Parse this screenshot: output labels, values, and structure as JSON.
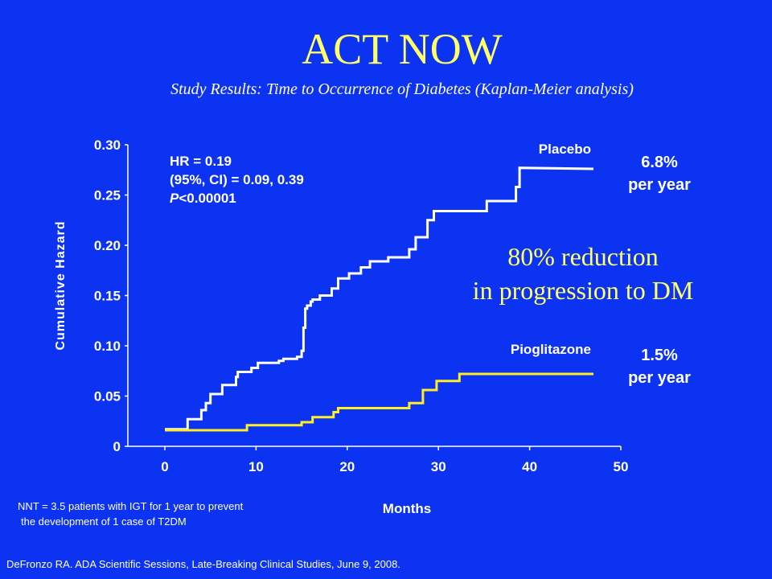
{
  "title": "ACT NOW",
  "subtitle": "Study Results: Time to Occurrence of Diabetes (Kaplan-Meier analysis)",
  "stats": {
    "hr": "HR = 0.19",
    "ci": "(95%, CI) = 0.09, 0.39",
    "p_italic": "P",
    "p_rest": "<0.00001"
  },
  "rates": {
    "placebo_pct": "6.8%",
    "placebo_unit": "per year",
    "pio_pct": "1.5%",
    "pio_unit": "per year"
  },
  "reduction_line1": "80% reduction",
  "reduction_line2": "in progression to DM",
  "nnt_line1": "NNT = 3.5 patients with IGT for 1 year to prevent",
  "nnt_line2": "the development of 1 case of T2DM",
  "source": "DeFronzo RA. ADA Scientific Sessions, Late-Breaking Clinical Studies, June 9, 2008.",
  "colors": {
    "background": "#0d33f2",
    "title": "#ffff66",
    "placebo": "#ffffff",
    "pioglitazone": "#ffee22"
  },
  "chart_data": {
    "type": "line",
    "xlabel": "Months",
    "ylabel": "Cumulative Hazard",
    "xlim": [
      0,
      50
    ],
    "ylim": [
      0,
      0.3
    ],
    "xticks": [
      "0",
      "10",
      "20",
      "30",
      "40",
      "50"
    ],
    "yticks": [
      "0",
      "0.05",
      "0.10",
      "0.15",
      "0.20",
      "0.25",
      "0.30"
    ],
    "series": [
      {
        "name": "Placebo",
        "color": "#ffffff",
        "points": [
          [
            0,
            0.017
          ],
          [
            2.5,
            0.017
          ],
          [
            2.5,
            0.027
          ],
          [
            4,
            0.027
          ],
          [
            4,
            0.036
          ],
          [
            4.5,
            0.036
          ],
          [
            4.5,
            0.043
          ],
          [
            5,
            0.043
          ],
          [
            5,
            0.052
          ],
          [
            6.3,
            0.052
          ],
          [
            6.3,
            0.061
          ],
          [
            7.8,
            0.061
          ],
          [
            7.8,
            0.069
          ],
          [
            8,
            0.069
          ],
          [
            8,
            0.074
          ],
          [
            9.5,
            0.074
          ],
          [
            9.5,
            0.078
          ],
          [
            10.2,
            0.078
          ],
          [
            10.2,
            0.083
          ],
          [
            12.5,
            0.083
          ],
          [
            12.5,
            0.085
          ],
          [
            13,
            0.085
          ],
          [
            13,
            0.087
          ],
          [
            14.5,
            0.087
          ],
          [
            14.5,
            0.089
          ],
          [
            15,
            0.089
          ],
          [
            15,
            0.095
          ],
          [
            15.2,
            0.095
          ],
          [
            15.2,
            0.118
          ],
          [
            15.4,
            0.118
          ],
          [
            15.4,
            0.137
          ],
          [
            15.6,
            0.137
          ],
          [
            15.6,
            0.14
          ],
          [
            16,
            0.14
          ],
          [
            16,
            0.144
          ],
          [
            16.2,
            0.144
          ],
          [
            16.2,
            0.146
          ],
          [
            17,
            0.146
          ],
          [
            17,
            0.15
          ],
          [
            18.3,
            0.15
          ],
          [
            18.3,
            0.157
          ],
          [
            19,
            0.157
          ],
          [
            19,
            0.167
          ],
          [
            20.2,
            0.167
          ],
          [
            20.2,
            0.172
          ],
          [
            21.5,
            0.172
          ],
          [
            21.5,
            0.178
          ],
          [
            22.5,
            0.178
          ],
          [
            22.5,
            0.184
          ],
          [
            24.5,
            0.184
          ],
          [
            24.5,
            0.188
          ],
          [
            26.8,
            0.188
          ],
          [
            26.8,
            0.196
          ],
          [
            27.5,
            0.196
          ],
          [
            27.5,
            0.208
          ],
          [
            28.8,
            0.208
          ],
          [
            28.8,
            0.225
          ],
          [
            29.5,
            0.225
          ],
          [
            29.5,
            0.234
          ],
          [
            35.3,
            0.234
          ],
          [
            35.3,
            0.244
          ],
          [
            38.5,
            0.244
          ],
          [
            38.5,
            0.258
          ],
          [
            38.9,
            0.258
          ],
          [
            38.9,
            0.277
          ],
          [
            47,
            0.276
          ]
        ]
      },
      {
        "name": "Pioglitazone",
        "color": "#ffee22",
        "points": [
          [
            0,
            0.016
          ],
          [
            9,
            0.016
          ],
          [
            9,
            0.021
          ],
          [
            15,
            0.021
          ],
          [
            15,
            0.024
          ],
          [
            16.2,
            0.024
          ],
          [
            16.2,
            0.029
          ],
          [
            18.5,
            0.029
          ],
          [
            18.5,
            0.034
          ],
          [
            19,
            0.034
          ],
          [
            19,
            0.038
          ],
          [
            26.8,
            0.038
          ],
          [
            26.8,
            0.043
          ],
          [
            28.3,
            0.043
          ],
          [
            28.3,
            0.056
          ],
          [
            29.8,
            0.056
          ],
          [
            29.8,
            0.065
          ],
          [
            32.3,
            0.065
          ],
          [
            32.3,
            0.072
          ],
          [
            47,
            0.072
          ]
        ]
      }
    ]
  }
}
